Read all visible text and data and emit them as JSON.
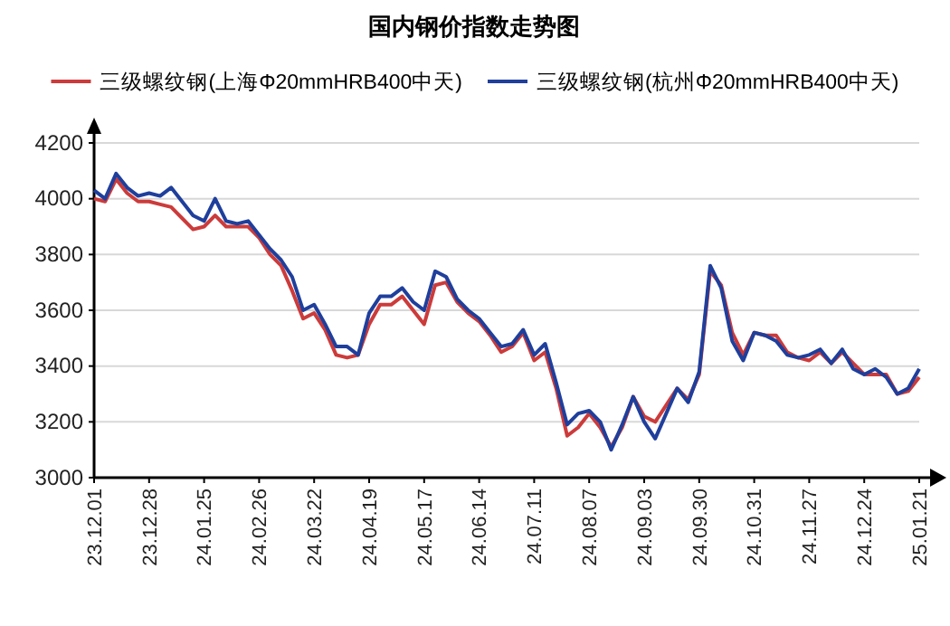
{
  "chart_data": {
    "type": "line",
    "title": "国内钢价指数走势图",
    "categories": [
      "23.12.01",
      null,
      null,
      null,
      null,
      "23.12.28",
      null,
      null,
      null,
      null,
      "24.01.25",
      null,
      null,
      null,
      null,
      "24.02.26",
      null,
      null,
      null,
      null,
      "24.03.22",
      null,
      null,
      null,
      null,
      "24.04.19",
      null,
      null,
      null,
      null,
      "24.05.17",
      null,
      null,
      null,
      null,
      "24.06.14",
      null,
      null,
      null,
      null,
      "24.07.11",
      null,
      null,
      null,
      null,
      "24.08.07",
      null,
      null,
      null,
      null,
      "24.09.03",
      null,
      null,
      null,
      null,
      "24.09.30",
      null,
      null,
      null,
      null,
      "24.10.31",
      null,
      null,
      null,
      null,
      "24.11.27",
      null,
      null,
      null,
      null,
      "24.12.24",
      null,
      null,
      null,
      null,
      "25.01.21"
    ],
    "series": [
      {
        "name": "三级螺纹钢(上海Φ20mmHRB400中天)",
        "color": "#cc3b3b",
        "values": [
          4000,
          3990,
          4070,
          4020,
          3990,
          3990,
          3980,
          3970,
          3930,
          3890,
          3900,
          3940,
          3900,
          3900,
          3900,
          3860,
          3800,
          3760,
          3670,
          3570,
          3590,
          3530,
          3440,
          3430,
          3440,
          3550,
          3620,
          3620,
          3650,
          3600,
          3550,
          3690,
          3700,
          3630,
          3590,
          3560,
          3510,
          3450,
          3470,
          3520,
          3420,
          3450,
          3320,
          3150,
          3180,
          3230,
          3180,
          3110,
          3180,
          3290,
          3220,
          3200,
          3260,
          3320,
          3280,
          3370,
          3740,
          3690,
          3520,
          3440,
          3520,
          3510,
          3510,
          3450,
          3430,
          3420,
          3450,
          3410,
          3450,
          3410,
          3370,
          3370,
          3370,
          3300,
          3310,
          3360
        ]
      },
      {
        "name": "三级螺纹钢(杭州Φ20mmHRB400中天)",
        "color": "#1f3f9c",
        "values": [
          4030,
          4000,
          4090,
          4040,
          4010,
          4020,
          4010,
          4040,
          3990,
          3940,
          3920,
          4000,
          3920,
          3910,
          3920,
          3870,
          3820,
          3780,
          3720,
          3600,
          3620,
          3550,
          3470,
          3470,
          3440,
          3590,
          3650,
          3650,
          3680,
          3630,
          3600,
          3740,
          3720,
          3640,
          3600,
          3570,
          3520,
          3470,
          3480,
          3530,
          3440,
          3480,
          3340,
          3190,
          3230,
          3240,
          3200,
          3100,
          3190,
          3290,
          3200,
          3140,
          3230,
          3320,
          3270,
          3380,
          3760,
          3680,
          3490,
          3420,
          3520,
          3510,
          3490,
          3440,
          3430,
          3440,
          3460,
          3410,
          3460,
          3390,
          3370,
          3390,
          3360,
          3300,
          3320,
          3390
        ]
      }
    ],
    "ylim": [
      3000,
      4200
    ],
    "yticks": [
      3000,
      3200,
      3400,
      3600,
      3800,
      4000,
      4200
    ],
    "grid": "y",
    "legend": "top",
    "line_style": "solid",
    "marker": "none"
  }
}
